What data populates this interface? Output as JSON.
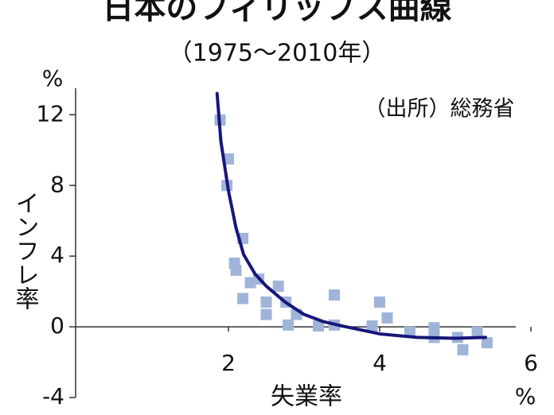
{
  "chart_data": {
    "type": "scatter",
    "title": "日本のフィリップス曲線",
    "subtitle": "（1975～2010年）",
    "source": "（出所）総務省",
    "x_label": "失業率",
    "x_unit": "%",
    "y_label": "インフレ率",
    "y_unit": "%",
    "xlim": [
      0,
      6
    ],
    "ylim": [
      -4,
      13.5
    ],
    "xticks": [
      2,
      4,
      6
    ],
    "yticks": [
      -4,
      0,
      4,
      8,
      12
    ],
    "series": [
      {
        "color": "#9fb4d8",
        "x": [
          1.89,
          2.0,
          1.98,
          2.19,
          2.08,
          2.1,
          2.19,
          2.29,
          2.4,
          2.5,
          2.5,
          2.66,
          2.76,
          2.79,
          2.9,
          3.19,
          3.4,
          3.4,
          3.9,
          4.0,
          4.1,
          4.4,
          4.72,
          4.72,
          5.03,
          5.1,
          5.29,
          5.42
        ],
        "values": [
          11.7,
          9.5,
          8.0,
          5.0,
          3.6,
          3.2,
          1.6,
          2.5,
          2.7,
          1.4,
          0.7,
          2.3,
          1.4,
          0.1,
          0.7,
          0.05,
          1.8,
          0.1,
          0.05,
          1.4,
          0.5,
          -0.3,
          -0.05,
          -0.6,
          -0.6,
          -1.3,
          -0.3,
          -0.9
        ]
      },
      {
        "type": "line",
        "color": "#16167a",
        "x": [
          1.85,
          1.9,
          2.0,
          2.1,
          2.2,
          2.35,
          2.5,
          2.75,
          3.0,
          3.25,
          3.5,
          4.0,
          4.5,
          5.0,
          5.4
        ],
        "values": [
          13.2,
          10.5,
          7.7,
          5.6,
          4.1,
          3.0,
          2.3,
          1.4,
          0.7,
          0.3,
          0.05,
          -0.4,
          -0.6,
          -0.65,
          -0.6
        ]
      }
    ]
  }
}
